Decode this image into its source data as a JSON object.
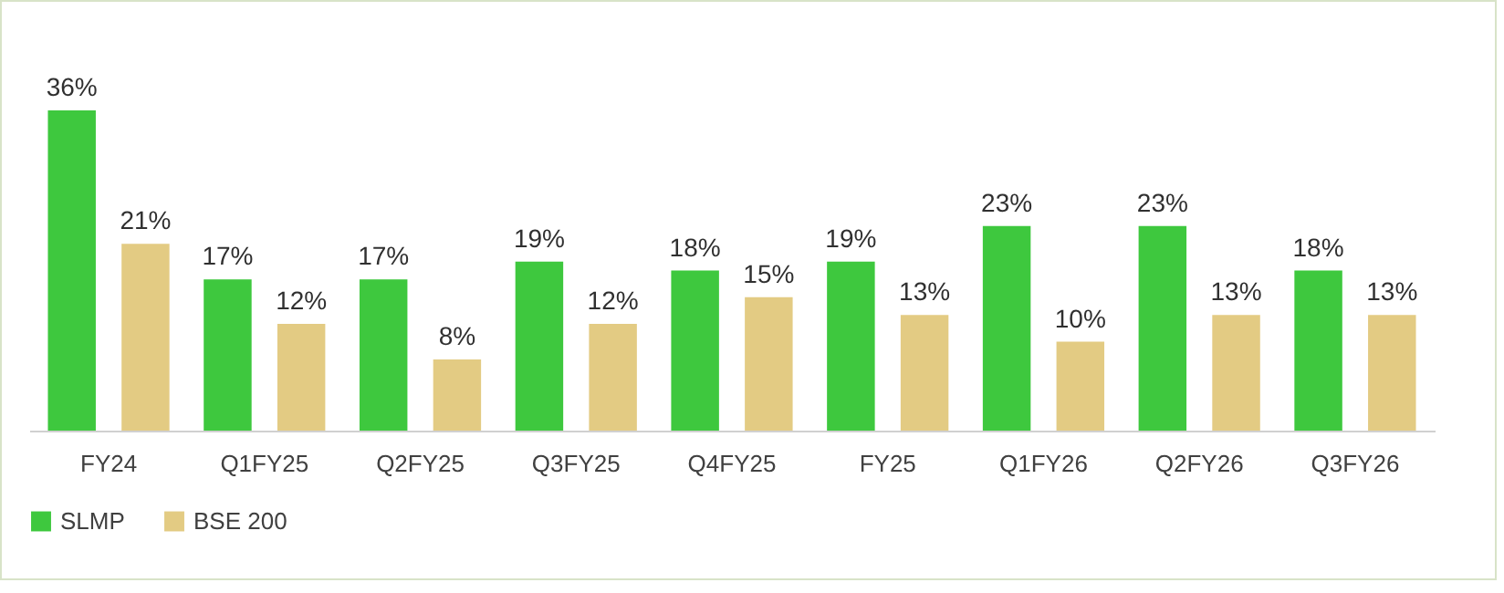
{
  "chart_data": {
    "type": "bar",
    "categories": [
      "FY24",
      "Q1FY25",
      "Q2FY25",
      "Q3FY25",
      "Q4FY25",
      "FY25",
      "Q1FY26",
      "Q2FY26",
      "Q3FY26"
    ],
    "series": [
      {
        "name": "SLMP",
        "color": "#3ec83e",
        "values": [
          36,
          17,
          17,
          19,
          18,
          19,
          23,
          23,
          18
        ],
        "value_labels": [
          "36%",
          "17%",
          "17%",
          "19%",
          "18%",
          "19%",
          "23%",
          "23%",
          "18%"
        ]
      },
      {
        "name": "BSE 200",
        "color": "#e3cb83",
        "values": [
          21,
          12,
          8,
          12,
          15,
          13,
          10,
          13,
          13
        ],
        "value_labels": [
          "21%",
          "12%",
          "8%",
          "12%",
          "15%",
          "13%",
          "10%",
          "13%",
          "13%"
        ]
      }
    ],
    "legend": "bottom",
    "grid": false
  }
}
